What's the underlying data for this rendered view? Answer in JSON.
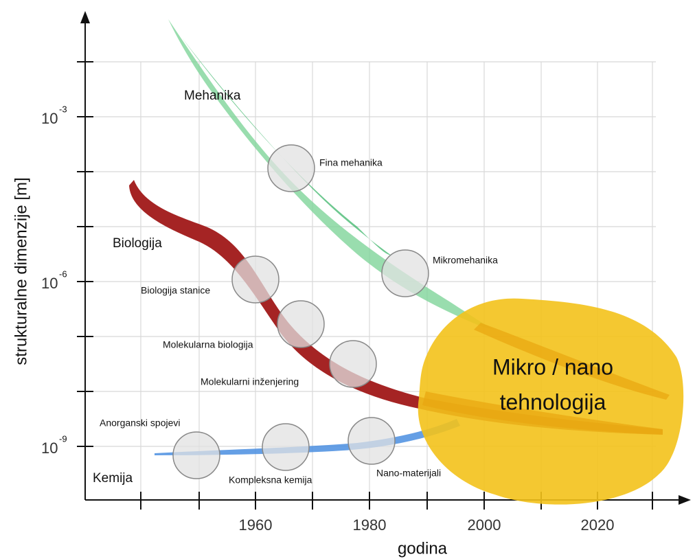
{
  "axes": {
    "y_title": "strukturalne dimenzije [m]",
    "x_title": "godina",
    "x_tick_labels": [
      "1960",
      "1980",
      "2000",
      "2020"
    ],
    "y_tick_labels": [
      {
        "base": "10",
        "exp": "-3"
      },
      {
        "base": "10",
        "exp": "-6"
      },
      {
        "base": "10",
        "exp": "-9"
      }
    ]
  },
  "fields": {
    "mechanics": "Mehanika",
    "biology": "Biologija",
    "chemistry": "Kemija",
    "anorganic": "Anorganski spojevi"
  },
  "milestones": {
    "fine_mechanics": "Fina mehanika",
    "micromechanics": "Mikromehanika",
    "cell_biology": "Biologija stanice",
    "molecular_biology": "Molekularna biologija",
    "molecular_engineering": "Molekularni inženjering",
    "complex_chemistry": "Kompleksna kemija",
    "nanomaterials": "Nano-materijali"
  },
  "target": {
    "line1": "Mikro / nano",
    "line2": "tehnologija"
  }
}
